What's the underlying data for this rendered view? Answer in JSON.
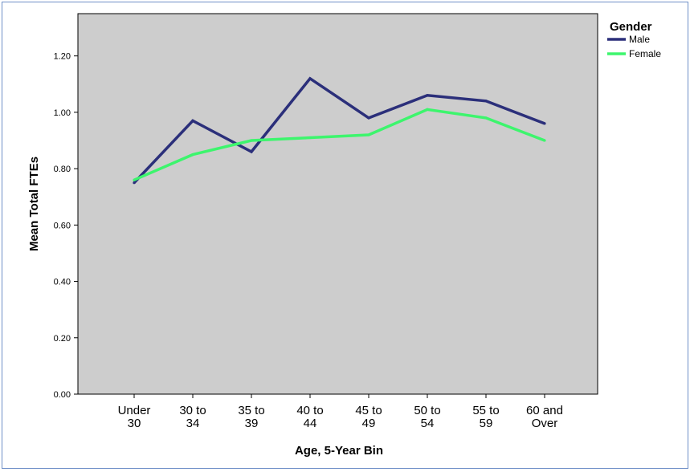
{
  "chart_data": {
    "type": "line",
    "title": "",
    "xlabel": "Age, 5-Year Bin",
    "ylabel": "Mean Total FTEs",
    "categories": [
      [
        "Under",
        "30"
      ],
      [
        "30 to",
        "34"
      ],
      [
        "35 to",
        "39"
      ],
      [
        "40 to",
        "44"
      ],
      [
        "45 to",
        "49"
      ],
      [
        "50 to",
        "54"
      ],
      [
        "55 to",
        "59"
      ],
      [
        "60 and",
        "Over"
      ]
    ],
    "ylim": [
      0,
      1.35
    ],
    "yticks": [
      "0.00",
      "0.20",
      "0.40",
      "0.60",
      "0.80",
      "1.00",
      "1.20"
    ],
    "grid": false,
    "legend": {
      "title": "Gender",
      "placement": "top-right"
    },
    "series": [
      {
        "name": "Male",
        "color": "#2b2f7a",
        "values": [
          0.75,
          0.97,
          0.86,
          1.12,
          0.98,
          1.06,
          1.04,
          0.96
        ]
      },
      {
        "name": "Female",
        "color": "#3df56d",
        "values": [
          0.76,
          0.85,
          0.9,
          0.91,
          0.92,
          1.01,
          0.98,
          0.9
        ]
      }
    ],
    "colors": {
      "plot_background": "#cdcdcd",
      "frame_border": "#6f8fc7"
    }
  }
}
